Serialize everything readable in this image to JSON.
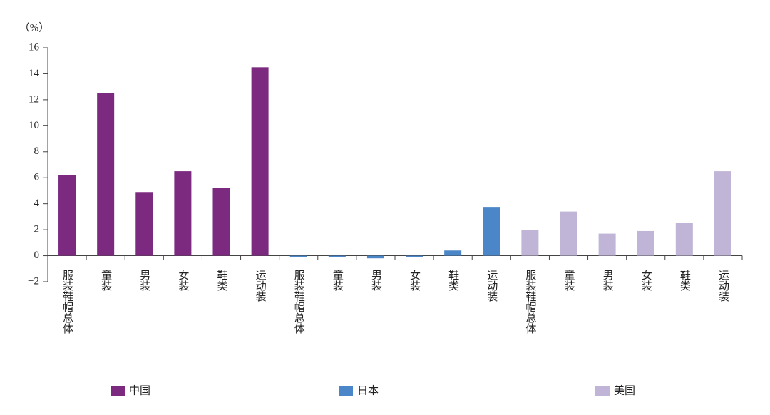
{
  "chart_data": {
    "type": "bar",
    "y_label": "（%）",
    "categories": [
      "服装鞋帽总体",
      "童装",
      "男装",
      "女装",
      "鞋类",
      "运动装",
      "服装鞋帽总体",
      "童装",
      "男装",
      "女装",
      "鞋类",
      "运动装",
      "服装鞋帽总体",
      "童装",
      "男装",
      "女装",
      "鞋类",
      "运动装"
    ],
    "series": [
      {
        "name": "中国",
        "color": "#7b2a7f",
        "values": [
          6.2,
          12.5,
          4.9,
          6.5,
          5.2,
          14.5,
          null,
          null,
          null,
          null,
          null,
          null,
          null,
          null,
          null,
          null,
          null,
          null
        ]
      },
      {
        "name": "日本",
        "color": "#4a86c8",
        "values": [
          null,
          null,
          null,
          null,
          null,
          null,
          -0.1,
          -0.1,
          -0.2,
          -0.1,
          0.4,
          3.7,
          null,
          null,
          null,
          null,
          null,
          null
        ]
      },
      {
        "name": "美国",
        "color": "#c0b5d6",
        "values": [
          null,
          null,
          null,
          null,
          null,
          null,
          null,
          null,
          null,
          null,
          null,
          null,
          2.0,
          3.4,
          1.7,
          1.9,
          2.5,
          6.5
        ]
      }
    ],
    "ylim": [
      -2,
      16
    ],
    "yticks": [
      {
        "value": -2,
        "label": "−2"
      },
      0,
      2,
      4,
      6,
      8,
      10,
      12,
      14,
      16
    ],
    "grid": false
  }
}
